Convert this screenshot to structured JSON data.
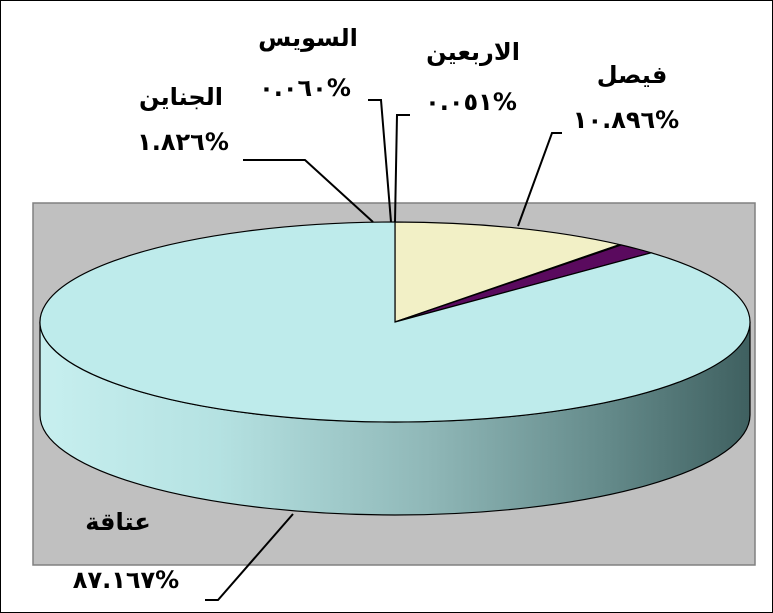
{
  "chart_data": {
    "type": "pie",
    "style": "3d",
    "categories": [
      "فيصل",
      "الاربعين",
      "السويس",
      "الجناين",
      "عتاقة"
    ],
    "values": [
      10.896,
      0.051,
      0.06,
      1.826,
      87.167
    ],
    "value_labels": [
      "%١٠.٨٩٦",
      "%٠.٠٥١",
      "%٠.٠٦٠",
      "%١.٨٢٦",
      "%٨٧.١٦٧"
    ],
    "colors": [
      "#F2F0C6",
      "#CCCCCC",
      "#BBBBBB",
      "#5A0A5E",
      "#BEEBEB"
    ],
    "plot_area_color": "#C0C0C0",
    "legend": "none"
  }
}
